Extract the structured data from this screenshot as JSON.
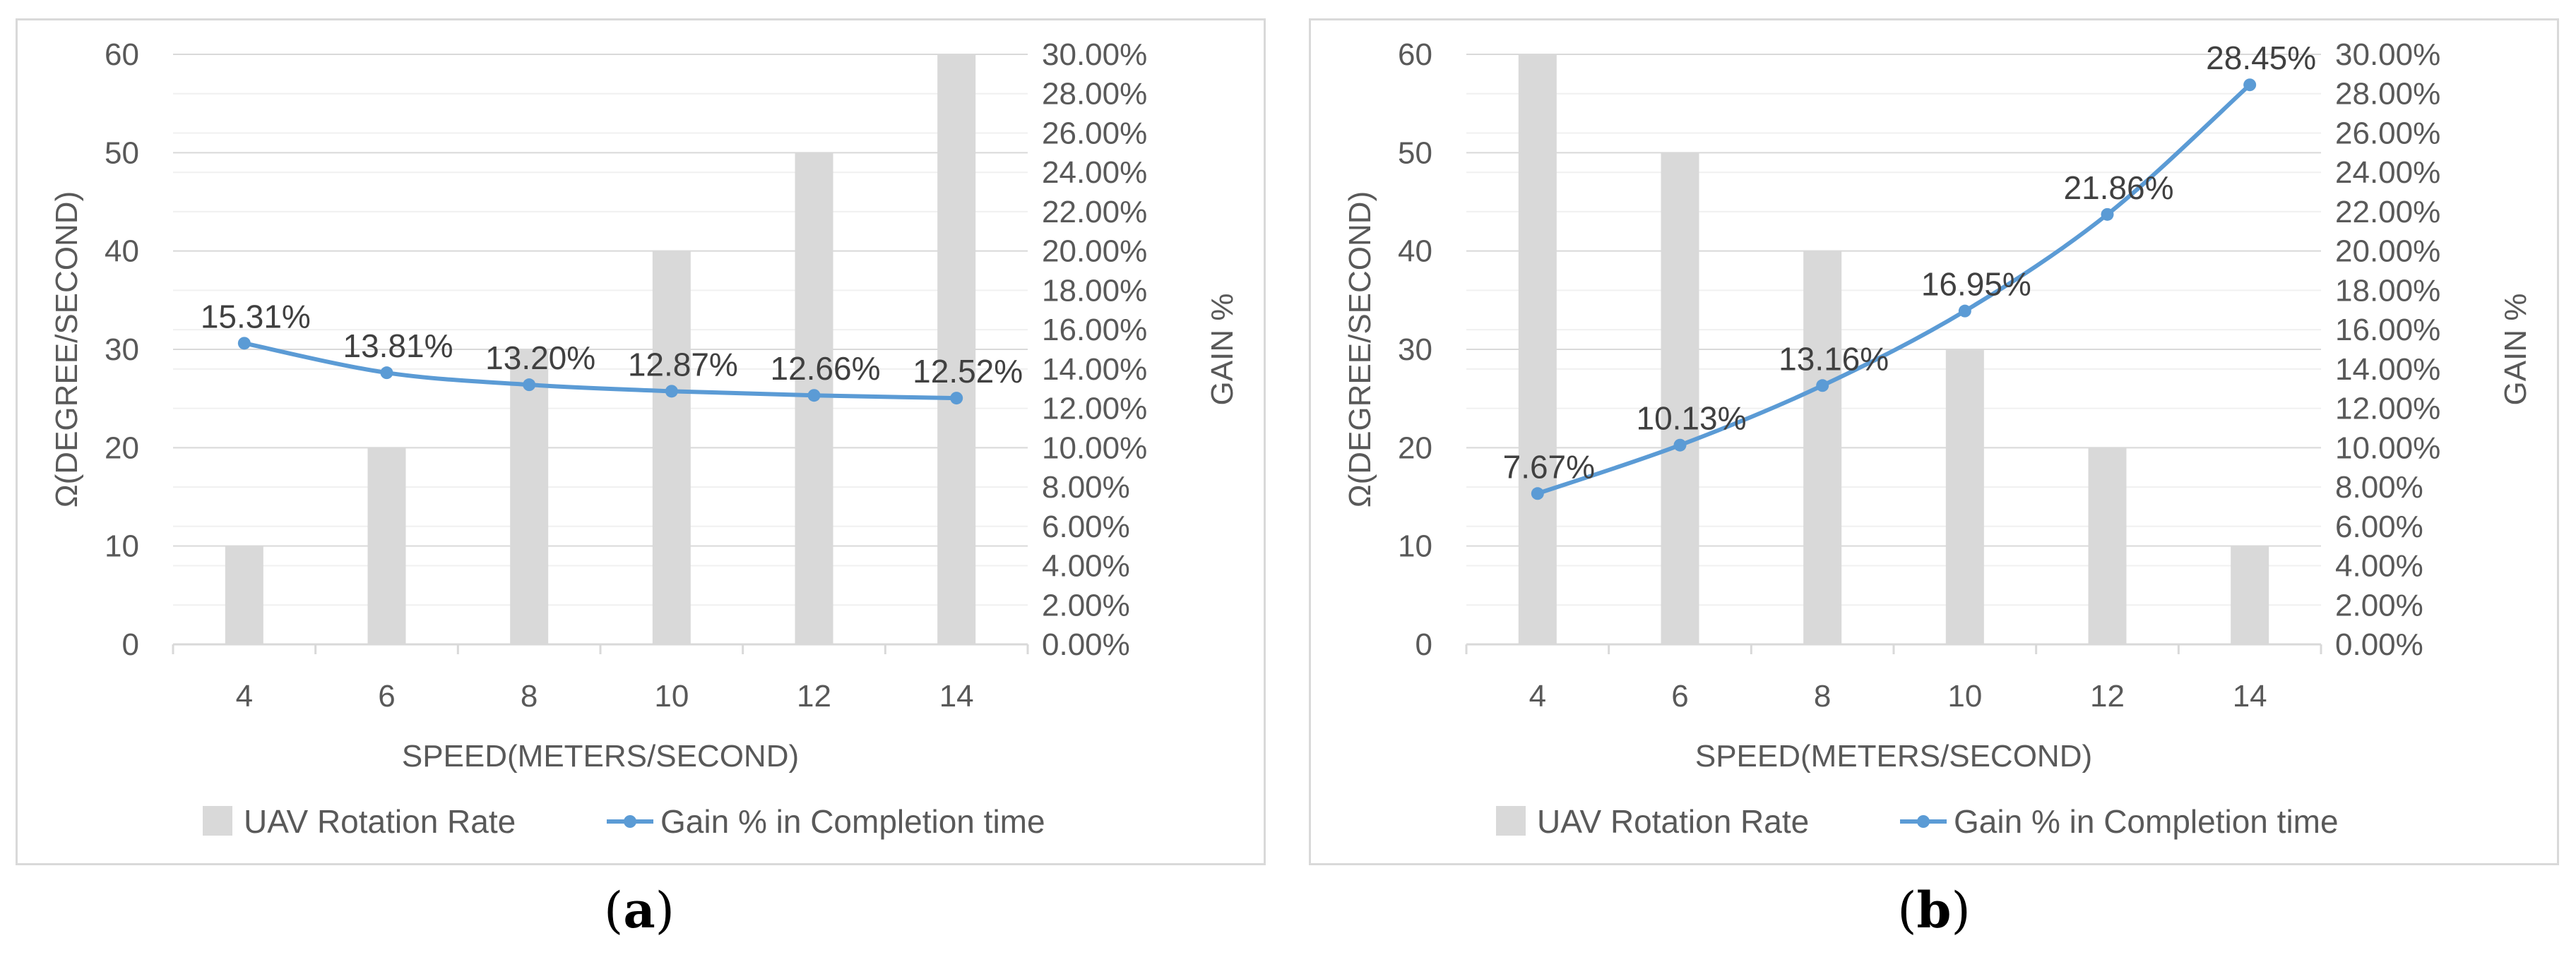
{
  "chart_data": [
    {
      "type": "bar+line",
      "categories": [
        "4",
        "6",
        "8",
        "10",
        "12",
        "14"
      ],
      "series": [
        {
          "name": "UAV Rotation Rate",
          "type": "bar",
          "axis": "left",
          "values": [
            10,
            20,
            30,
            40,
            50,
            60
          ]
        },
        {
          "name": "Gain % in Completion time",
          "type": "line",
          "axis": "right",
          "values": [
            15.31,
            13.81,
            13.2,
            12.87,
            12.66,
            12.52
          ]
        }
      ],
      "data_labels": [
        "15.31%",
        "13.81%",
        "13.20%",
        "12.87%",
        "12.66%",
        "12.52%"
      ],
      "xlabel": "SPEED(METERS/SECOND)",
      "ylabel": "Ω(DEGREE/SECOND)",
      "y2label": "GAIN %",
      "ylim": [
        0,
        60
      ],
      "y_ticks": [
        "0",
        "10",
        "20",
        "30",
        "40",
        "50",
        "60"
      ],
      "y2lim": [
        0,
        30
      ],
      "y2_ticks": [
        "0.00%",
        "2.00%",
        "4.00%",
        "6.00%",
        "8.00%",
        "10.00%",
        "12.00%",
        "14.00%",
        "16.00%",
        "18.00%",
        "20.00%",
        "22.00%",
        "24.00%",
        "26.00%",
        "28.00%",
        "30.00%"
      ],
      "grid": true,
      "legend": "bottom",
      "colors": {
        "bar": "#d9d9d9",
        "line": "#5b9bd5"
      }
    },
    {
      "type": "bar+line",
      "categories": [
        "4",
        "6",
        "8",
        "10",
        "12",
        "14"
      ],
      "series": [
        {
          "name": "UAV Rotation Rate",
          "type": "bar",
          "axis": "left",
          "values": [
            60,
            50,
            40,
            30,
            20,
            10
          ]
        },
        {
          "name": "Gain % in Completion time",
          "type": "line",
          "axis": "right",
          "values": [
            7.67,
            10.13,
            13.16,
            16.95,
            21.86,
            28.45
          ]
        }
      ],
      "data_labels": [
        "7.67%",
        "10.13%",
        "13.16%",
        "16.95%",
        "21.86%",
        "28.45%"
      ],
      "xlabel": "SPEED(METERS/SECOND)",
      "ylabel": "Ω(DEGREE/SECOND)",
      "y2label": "GAIN %",
      "ylim": [
        0,
        60
      ],
      "y_ticks": [
        "0",
        "10",
        "20",
        "30",
        "40",
        "50",
        "60"
      ],
      "y2lim": [
        0,
        30
      ],
      "y2_ticks": [
        "0.00%",
        "2.00%",
        "4.00%",
        "6.00%",
        "8.00%",
        "10.00%",
        "12.00%",
        "14.00%",
        "16.00%",
        "18.00%",
        "20.00%",
        "22.00%",
        "24.00%",
        "26.00%",
        "28.00%",
        "30.00%"
      ],
      "grid": true,
      "legend": "bottom",
      "colors": {
        "bar": "#d9d9d9",
        "line": "#5b9bd5"
      }
    }
  ],
  "captions": [
    {
      "letter": "a",
      "open": "(",
      "close": ")"
    },
    {
      "letter": "b",
      "open": "(",
      "close": ")"
    }
  ]
}
